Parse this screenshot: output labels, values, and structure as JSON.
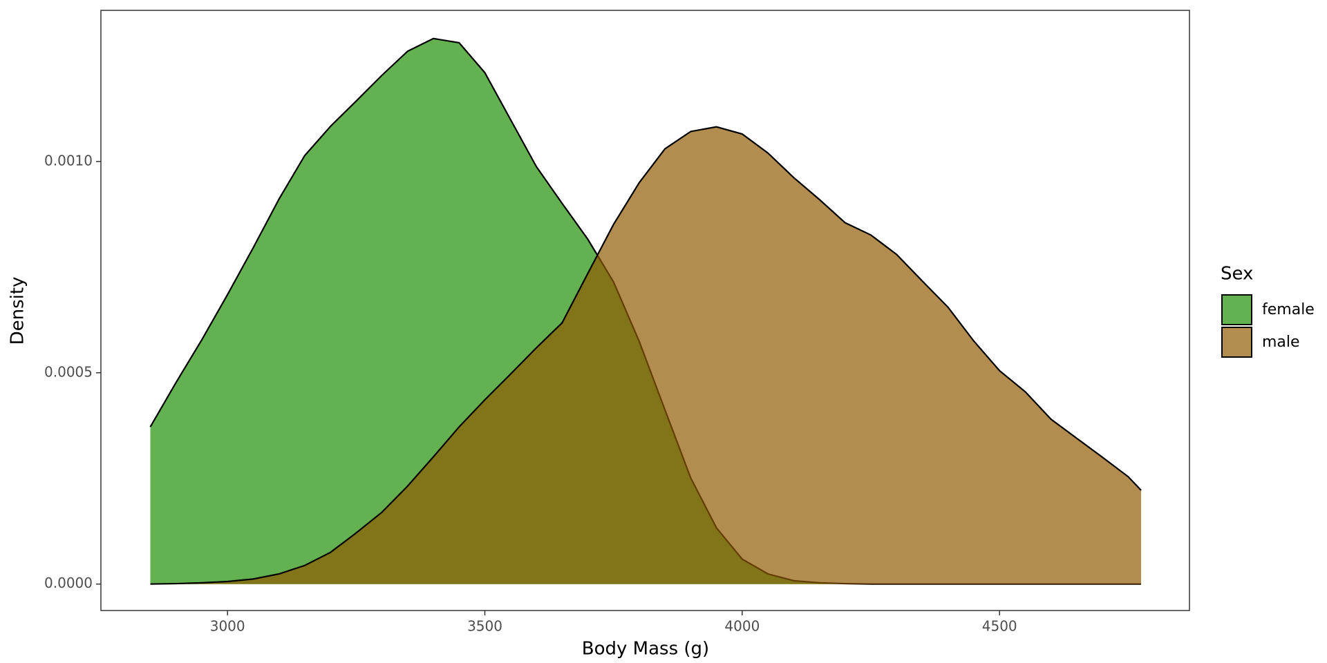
{
  "chart_data": {
    "type": "density",
    "x_label": "Body Mass (g)",
    "y_label": "Density",
    "legend_title": "Sex",
    "xlim": [
      2754,
      4869
    ],
    "ylim": [
      -6.26e-05,
      0.0013576
    ],
    "xticks": [
      3000,
      3500,
      4000,
      4500
    ],
    "yticks": [
      {
        "value": 0,
        "label": "0.0000"
      },
      {
        "value": 0.0005,
        "label": "0.0005"
      },
      {
        "value": 0.001,
        "label": "0.0010"
      }
    ],
    "alpha": 0.69,
    "x": [
      2850,
      2900,
      2950,
      3000,
      3050,
      3100,
      3150,
      3200,
      3250,
      3300,
      3350,
      3400,
      3450,
      3500,
      3550,
      3600,
      3650,
      3700,
      3750,
      3800,
      3850,
      3900,
      3950,
      4000,
      4050,
      4100,
      4150,
      4200,
      4250,
      4300,
      4350,
      4400,
      4450,
      4500,
      4550,
      4600,
      4650,
      4700,
      4750,
      4775
    ],
    "series": [
      {
        "name": "female",
        "color": "#1d8e01",
        "values": [
          0.000372,
          0.000477,
          0.000578,
          0.000685,
          0.000796,
          0.000911,
          0.001014,
          0.001083,
          0.001143,
          0.001204,
          0.001261,
          0.001291,
          0.001281,
          0.00121,
          0.001099,
          0.000988,
          0.000901,
          0.000816,
          0.000715,
          0.000574,
          0.000412,
          0.000251,
          0.000133,
          5.9e-05,
          2.4e-05,
          8e-06,
          3e-06,
          1e-06,
          0,
          0,
          0,
          0,
          0,
          0,
          0,
          0,
          0,
          0,
          0,
          0
        ]
      },
      {
        "name": "male",
        "color": "#915800",
        "values": [
          0,
          1e-06,
          3e-06,
          6e-06,
          1.2e-05,
          2.4e-05,
          4.4e-05,
          7.5e-05,
          0.000121,
          0.00017,
          0.000232,
          0.000301,
          0.000372,
          0.000436,
          0.000497,
          0.000559,
          0.000618,
          0.000735,
          0.000851,
          0.00095,
          0.00103,
          0.001071,
          0.001082,
          0.001065,
          0.00102,
          0.000962,
          0.00091,
          0.000855,
          0.000826,
          0.00078,
          0.000717,
          0.000655,
          0.000575,
          0.000505,
          0.000455,
          0.00039,
          0.000345,
          0.0003,
          0.000254,
          0.000222
        ]
      }
    ]
  }
}
